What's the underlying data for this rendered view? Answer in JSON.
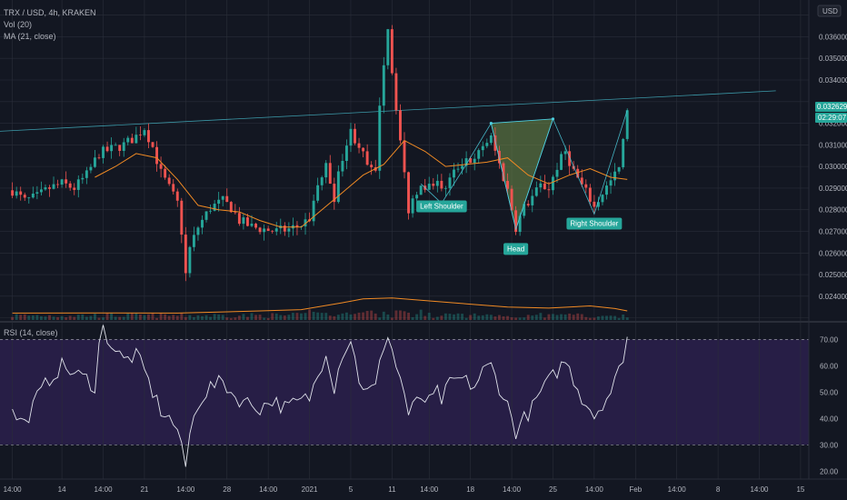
{
  "header": {
    "symbol_line": "TRX / USD, 4h, KRAKEN",
    "vol_line": "Vol (20)",
    "ma_line": "MA (21, close)",
    "currency": "USD"
  },
  "rsi_header": "RSI (14, close)",
  "price_tags": {
    "last_price": "0.032629",
    "countdown": "02:29:07"
  },
  "colors": {
    "background": "#131722",
    "grid": "#2a2e39",
    "up": "#26a69a",
    "down": "#ef5350",
    "ma": "#f08a24",
    "rsi_line": "#e0e3eb",
    "rsi_band": "#2a1f4a",
    "trendline": "#4dd0e1",
    "pattern_fill": "#6f8f4a"
  },
  "annotations": [
    {
      "label": "Left Shoulder",
      "time": 104,
      "price": 0.02805
    },
    {
      "label": "Head",
      "time": 122,
      "price": 0.02608
    },
    {
      "label": "Right Shoulder",
      "time": 141,
      "price": 0.02725
    }
  ],
  "chart_data": [
    {
      "type": "candlestick",
      "title": "TRX / USD, 4h, KRAKEN",
      "ylabel": "USD",
      "ylim": [
        0.0229,
        0.0377
      ],
      "yticks": [
        0.023,
        0.024,
        0.025,
        0.026,
        0.027,
        0.028,
        0.029,
        0.03,
        0.031,
        0.032,
        0.033,
        0.034,
        0.035,
        0.036,
        0.037
      ],
      "xticks": [
        {
          "t": 0,
          "label": "14:00"
        },
        {
          "t": 12,
          "label": "14"
        },
        {
          "t": 22,
          "label": "14:00"
        },
        {
          "t": 32,
          "label": "21"
        },
        {
          "t": 42,
          "label": "14:00"
        },
        {
          "t": 52,
          "label": "28"
        },
        {
          "t": 62,
          "label": "14:00"
        },
        {
          "t": 72,
          "label": "2021"
        },
        {
          "t": 82,
          "label": "5"
        },
        {
          "t": 92,
          "label": "11"
        },
        {
          "t": 101,
          "label": "14:00"
        },
        {
          "t": 111,
          "label": "18"
        },
        {
          "t": 121,
          "label": "14:00"
        },
        {
          "t": 131,
          "label": "25"
        },
        {
          "t": 141,
          "label": "14:00"
        },
        {
          "t": 151,
          "label": "Feb"
        },
        {
          "t": 161,
          "label": "14:00"
        },
        {
          "t": 171,
          "label": "8"
        },
        {
          "t": 181,
          "label": "14:00"
        },
        {
          "t": 191,
          "label": "15"
        }
      ],
      "close_path": [
        [
          0,
          0.0289
        ],
        [
          3,
          0.0284
        ],
        [
          6,
          0.0286
        ],
        [
          9,
          0.029
        ],
        [
          12,
          0.0292
        ],
        [
          15,
          0.029
        ],
        [
          18,
          0.0296
        ],
        [
          21,
          0.0306
        ],
        [
          24,
          0.0308
        ],
        [
          27,
          0.031
        ],
        [
          30,
          0.0314
        ],
        [
          32,
          0.0318
        ],
        [
          34,
          0.0309
        ],
        [
          36,
          0.0297
        ],
        [
          38,
          0.029
        ],
        [
          40,
          0.0283
        ],
        [
          41,
          0.027
        ],
        [
          42,
          0.025
        ],
        [
          43,
          0.0262
        ],
        [
          45,
          0.0272
        ],
        [
          48,
          0.0281
        ],
        [
          51,
          0.0284
        ],
        [
          53,
          0.0281
        ],
        [
          55,
          0.0275
        ],
        [
          58,
          0.0272
        ],
        [
          61,
          0.0271
        ],
        [
          64,
          0.027
        ],
        [
          67,
          0.0271
        ],
        [
          70,
          0.0273
        ],
        [
          72,
          0.0276
        ],
        [
          74,
          0.0291
        ],
        [
          76,
          0.03
        ],
        [
          78,
          0.0286
        ],
        [
          80,
          0.0305
        ],
        [
          82,
          0.0316
        ],
        [
          84,
          0.031
        ],
        [
          86,
          0.03
        ],
        [
          88,
          0.0296
        ],
        [
          89,
          0.033
        ],
        [
          90,
          0.0348
        ],
        [
          91,
          0.0365
        ],
        [
          92,
          0.0344
        ],
        [
          93,
          0.0328
        ],
        [
          94,
          0.0312
        ],
        [
          95,
          0.0296
        ],
        [
          96,
          0.028
        ],
        [
          97,
          0.0285
        ],
        [
          99,
          0.0293
        ],
        [
          101,
          0.029
        ],
        [
          103,
          0.0295
        ],
        [
          104,
          0.0288
        ],
        [
          106,
          0.0294
        ],
        [
          108,
          0.03
        ],
        [
          110,
          0.0304
        ],
        [
          112,
          0.0302
        ],
        [
          114,
          0.031
        ],
        [
          116,
          0.0313
        ],
        [
          118,
          0.0301
        ],
        [
          120,
          0.0289
        ],
        [
          122,
          0.0272
        ],
        [
          124,
          0.0281
        ],
        [
          126,
          0.0286
        ],
        [
          128,
          0.0291
        ],
        [
          130,
          0.029
        ],
        [
          132,
          0.03
        ],
        [
          134,
          0.0307
        ],
        [
          136,
          0.0298
        ],
        [
          138,
          0.0291
        ],
        [
          140,
          0.0285
        ],
        [
          141,
          0.0281
        ],
        [
          143,
          0.0288
        ],
        [
          145,
          0.0293
        ],
        [
          147,
          0.0299
        ],
        [
          148,
          0.0311
        ],
        [
          149,
          0.0326
        ]
      ],
      "ma21": [
        [
          20,
          0.0295
        ],
        [
          25,
          0.03
        ],
        [
          30,
          0.0306
        ],
        [
          35,
          0.0304
        ],
        [
          40,
          0.0294
        ],
        [
          45,
          0.0282
        ],
        [
          50,
          0.028
        ],
        [
          55,
          0.0279
        ],
        [
          60,
          0.0275
        ],
        [
          65,
          0.0272
        ],
        [
          70,
          0.0272
        ],
        [
          75,
          0.028
        ],
        [
          80,
          0.0288
        ],
        [
          85,
          0.0296
        ],
        [
          90,
          0.0301
        ],
        [
          95,
          0.0312
        ],
        [
          100,
          0.0307
        ],
        [
          105,
          0.03
        ],
        [
          110,
          0.0301
        ],
        [
          115,
          0.0302
        ],
        [
          120,
          0.0304
        ],
        [
          125,
          0.0296
        ],
        [
          130,
          0.0292
        ],
        [
          135,
          0.0296
        ],
        [
          140,
          0.0299
        ],
        [
          145,
          0.0295
        ],
        [
          149,
          0.0294
        ]
      ],
      "volume_ma": [
        [
          0,
          0.02322
        ],
        [
          20,
          0.02323
        ],
        [
          40,
          0.02322
        ],
        [
          60,
          0.02332
        ],
        [
          70,
          0.02338
        ],
        [
          80,
          0.0237
        ],
        [
          85,
          0.02388
        ],
        [
          92,
          0.02392
        ],
        [
          100,
          0.0238
        ],
        [
          110,
          0.02365
        ],
        [
          120,
          0.0235
        ],
        [
          130,
          0.02345
        ],
        [
          140,
          0.02355
        ],
        [
          146,
          0.02343
        ],
        [
          149,
          0.02332
        ]
      ],
      "resistance_line": [
        [
          -6,
          0.0316
        ],
        [
          185,
          0.0335
        ]
      ],
      "pattern_triangle": [
        [
          116,
          0.032
        ],
        [
          131,
          0.0322
        ],
        [
          122,
          0.0271
        ]
      ],
      "neckline_points": [
        [
          116,
          0.032
        ],
        [
          131,
          0.0322
        ]
      ],
      "pattern_wave": [
        [
          99,
          0.0292
        ],
        [
          104,
          0.0283
        ],
        [
          110,
          0.0301
        ],
        [
          116,
          0.032
        ],
        [
          122,
          0.0271
        ],
        [
          131,
          0.0322
        ],
        [
          141,
          0.0278
        ],
        [
          149,
          0.0326
        ]
      ]
    },
    {
      "type": "line",
      "title": "RSI (14, close)",
      "ylim": [
        17,
        76
      ],
      "yticks": [
        20,
        30,
        40,
        50,
        60,
        70
      ],
      "bands": [
        30,
        70
      ],
      "rsi_path": [
        [
          0,
          42
        ],
        [
          3,
          38
        ],
        [
          6,
          48
        ],
        [
          9,
          55
        ],
        [
          12,
          60
        ],
        [
          15,
          57
        ],
        [
          18,
          55
        ],
        [
          20,
          52
        ],
        [
          21,
          68
        ],
        [
          22,
          74
        ],
        [
          24,
          68
        ],
        [
          27,
          62
        ],
        [
          30,
          64
        ],
        [
          32,
          58
        ],
        [
          34,
          50
        ],
        [
          36,
          43
        ],
        [
          38,
          40
        ],
        [
          40,
          36
        ],
        [
          41,
          28
        ],
        [
          42,
          22
        ],
        [
          43,
          34
        ],
        [
          45,
          46
        ],
        [
          48,
          52
        ],
        [
          51,
          54
        ],
        [
          54,
          48
        ],
        [
          57,
          46
        ],
        [
          60,
          44
        ],
        [
          63,
          47
        ],
        [
          66,
          44
        ],
        [
          69,
          46
        ],
        [
          72,
          48
        ],
        [
          74,
          56
        ],
        [
          76,
          66
        ],
        [
          78,
          52
        ],
        [
          80,
          65
        ],
        [
          82,
          70
        ],
        [
          84,
          55
        ],
        [
          86,
          50
        ],
        [
          88,
          52
        ],
        [
          89,
          60
        ],
        [
          90,
          68
        ],
        [
          91,
          72
        ],
        [
          92,
          66
        ],
        [
          93,
          60
        ],
        [
          94,
          55
        ],
        [
          95,
          50
        ],
        [
          96,
          41
        ],
        [
          97,
          44
        ],
        [
          99,
          48
        ],
        [
          101,
          46
        ],
        [
          103,
          50
        ],
        [
          104,
          47
        ],
        [
          106,
          53
        ],
        [
          108,
          55
        ],
        [
          110,
          54
        ],
        [
          112,
          52
        ],
        [
          114,
          58
        ],
        [
          116,
          60
        ],
        [
          118,
          52
        ],
        [
          120,
          45
        ],
        [
          122,
          35
        ],
        [
          124,
          40
        ],
        [
          126,
          44
        ],
        [
          128,
          50
        ],
        [
          130,
          54
        ],
        [
          132,
          58
        ],
        [
          134,
          62
        ],
        [
          136,
          55
        ],
        [
          138,
          48
        ],
        [
          140,
          44
        ],
        [
          141,
          41
        ],
        [
          143,
          46
        ],
        [
          145,
          50
        ],
        [
          147,
          58
        ],
        [
          148,
          64
        ],
        [
          149,
          71
        ]
      ]
    }
  ]
}
